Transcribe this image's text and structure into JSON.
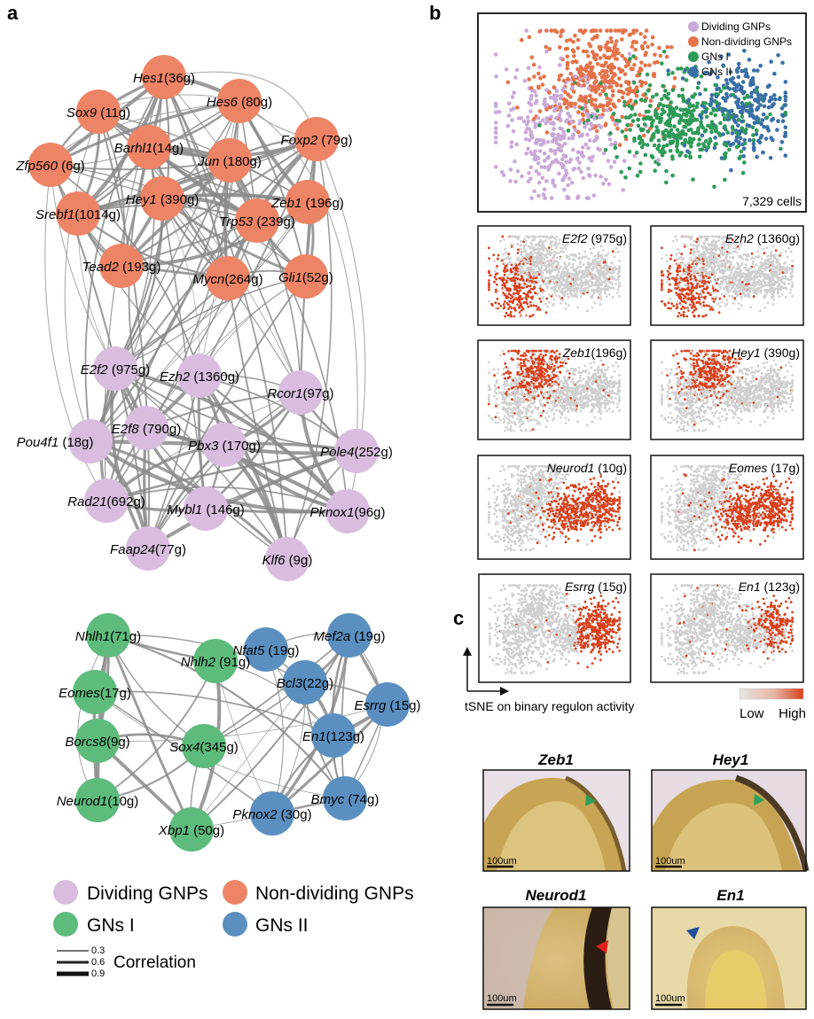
{
  "panels": {
    "a": "a",
    "b": "b",
    "c": "c"
  },
  "colors": {
    "dividing": "#d9bddf",
    "non_dividing": "#ee8466",
    "gns1": "#5dbb7c",
    "gns2": "#5a8fc0",
    "edge": "#8a8a8a",
    "tsne_grey": "#d0d0d0",
    "tsne_high": "#d8401c",
    "legend_dividing": "#c9a9d8",
    "legend_non_dividing": "#e5734a",
    "legend_gns1": "#2f9a58",
    "legend_gns2": "#3a6fa6"
  },
  "network_top": {
    "non_dividing": [
      {
        "gene": "Hes1",
        "count": "(36g)"
      },
      {
        "gene": "Sox9",
        "count": " (11g)"
      },
      {
        "gene": "Hes6",
        "count": " (80g)"
      },
      {
        "gene": "Barhl1",
        "count": "(14g)"
      },
      {
        "gene": "Foxp2",
        "count": " (79g)"
      },
      {
        "gene": "Zfp560",
        "count": " (6g)"
      },
      {
        "gene": "Jun",
        "count": " (180g)"
      },
      {
        "gene": "Hey1",
        "count": " (390g)"
      },
      {
        "gene": "Zeb1",
        "count": " (196g)"
      },
      {
        "gene": "Srebf1",
        "count": "(1014g)"
      },
      {
        "gene": "Trp53",
        "count": " (239g)"
      },
      {
        "gene": "Tead2",
        "count": " (193g)"
      },
      {
        "gene": "Mycn",
        "count": "(264g)"
      },
      {
        "gene": "Gli1",
        "count": "(52g)"
      }
    ],
    "dividing": [
      {
        "gene": "E2f2",
        "count": " (975g)"
      },
      {
        "gene": "Ezh2",
        "count": " (1360g)"
      },
      {
        "gene": "Rcor1",
        "count": "(97g)"
      },
      {
        "gene": "Pou4f1",
        "count": " (18g)"
      },
      {
        "gene": "E2f8",
        "count": " (790g)"
      },
      {
        "gene": "Pbx3",
        "count": " (170g)"
      },
      {
        "gene": "Pole4",
        "count": "(252g)"
      },
      {
        "gene": "Rad21",
        "count": "(692g)"
      },
      {
        "gene": "Mybl1",
        "count": " (146g)"
      },
      {
        "gene": "Pknox1",
        "count": "(96g)"
      },
      {
        "gene": "Faap24",
        "count": "(77g)"
      },
      {
        "gene": "Klf6",
        "count": " (9g)"
      }
    ]
  },
  "network_bottom": {
    "gns1": [
      {
        "gene": "Nhlh1",
        "count": "(71g)"
      },
      {
        "gene": "Nhlh2",
        "count": " (91g)"
      },
      {
        "gene": "Eomes",
        "count": "(17g)"
      },
      {
        "gene": "Borcs8",
        "count": "(9g)"
      },
      {
        "gene": "Sox4",
        "count": "(345g)"
      },
      {
        "gene": "Neurod1",
        "count": "(10g)"
      },
      {
        "gene": "Xbp1",
        "count": " (50g)"
      }
    ],
    "gns2": [
      {
        "gene": "Nfat5",
        "count": " (19g)"
      },
      {
        "gene": "Mef2a",
        "count": " (19g)"
      },
      {
        "gene": "Bcl3",
        "count": "(22g)"
      },
      {
        "gene": "Esrrg",
        "count": " (15g)"
      },
      {
        "gene": "En1",
        "count": "(123g)"
      },
      {
        "gene": "Bmyc",
        "count": " (74g)"
      },
      {
        "gene": "Pknox2",
        "count": " (30g)"
      }
    ]
  },
  "legend_a": {
    "items": [
      "Dividing GNPs",
      "Non-dividing GNPs",
      "GNs I",
      "GNs II"
    ],
    "correlation_ticks": [
      "0.3",
      "0.6",
      "0.9"
    ],
    "correlation_label": "Correlation"
  },
  "tsne_main": {
    "legend": [
      "Dividing GNPs",
      "Non-dividing GNPs",
      "GNs I",
      "GNs II"
    ],
    "cells": "7,329 cells"
  },
  "tsne_small": [
    {
      "gene": "E2f2",
      "count": " (975g)"
    },
    {
      "gene": "Ezh2",
      "count": " (1360g)"
    },
    {
      "gene": "Zeb1",
      "count": "(196g)"
    },
    {
      "gene": "Hey1",
      "count": " (390g)"
    },
    {
      "gene": "Neurod1",
      "count": " (10g)"
    },
    {
      "gene": "Eomes",
      "count": " (17g)"
    },
    {
      "gene": "Esrrg",
      "count": " (15g)"
    },
    {
      "gene": "En1",
      "count": " (123g)"
    }
  ],
  "tsne_axis_label": "tSNE on binary regulon activity",
  "scale": {
    "low": "Low",
    "high": "High"
  },
  "ish": [
    {
      "title": "Zeb1",
      "scalebar": "100um"
    },
    {
      "title": "Hey1",
      "scalebar": "100um"
    },
    {
      "title": "Neurod1",
      "scalebar": "100um"
    },
    {
      "title": "En1",
      "scalebar": "100um"
    }
  ]
}
